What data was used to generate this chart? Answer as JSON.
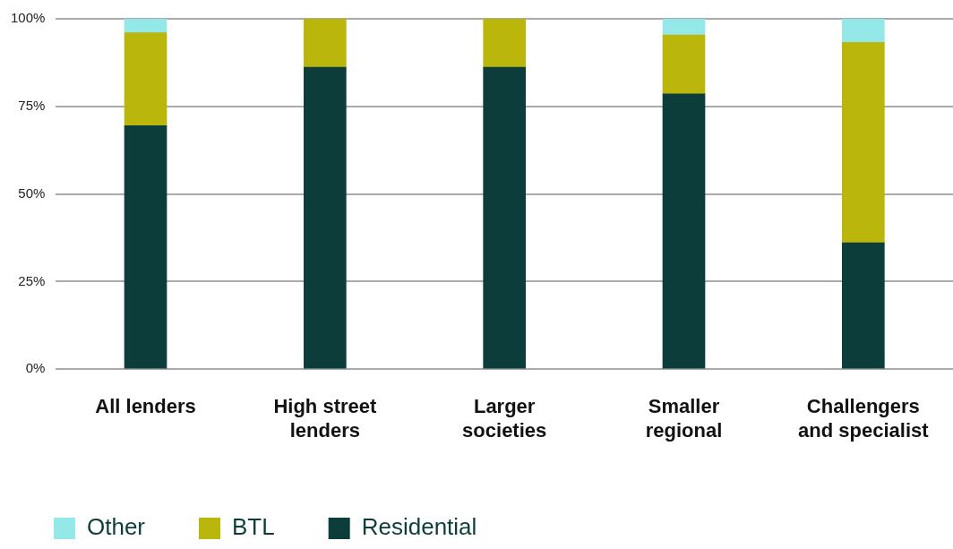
{
  "chart_data": {
    "type": "bar",
    "stacked": true,
    "categories": [
      "All lenders",
      "High street lenders",
      "Larger societies",
      "Smaller regional",
      "Challengers and specialist"
    ],
    "series": [
      {
        "name": "Residential",
        "color": "#0d3d3a",
        "values": [
          69.5,
          86.2,
          86.2,
          78.6,
          36.1
        ]
      },
      {
        "name": "BTL",
        "color": "#bab60b",
        "values": [
          26.5,
          13.8,
          13.8,
          16.8,
          57.2
        ]
      },
      {
        "name": "Other",
        "color": "#94e8e8",
        "values": [
          4.0,
          0,
          0,
          4.6,
          6.7
        ]
      }
    ],
    "ylim": [
      0,
      100
    ],
    "yticks": [
      {
        "value": 0,
        "label": "0%"
      },
      {
        "value": 25,
        "label": "25%"
      },
      {
        "value": 50,
        "label": "50%"
      },
      {
        "value": 75,
        "label": "75%"
      },
      {
        "value": 100,
        "label": "100%"
      }
    ],
    "grid": "y",
    "legend": "bottom left"
  }
}
